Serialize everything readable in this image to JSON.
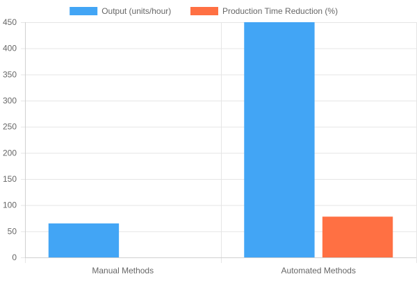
{
  "chart_data": {
    "type": "bar",
    "categories": [
      "Manual Methods",
      "Automated Methods"
    ],
    "series": [
      {
        "name": "Output (units/hour)",
        "values": [
          65,
          450
        ],
        "color": "#42a5f5"
      },
      {
        "name": "Production Time Reduction (%)",
        "values": [
          0,
          78
        ],
        "color": "#ff7043"
      }
    ],
    "ylim": [
      0,
      450
    ],
    "yticks": [
      0,
      50,
      100,
      150,
      200,
      250,
      300,
      350,
      400,
      450
    ],
    "grid": true,
    "legend_position": "top"
  }
}
